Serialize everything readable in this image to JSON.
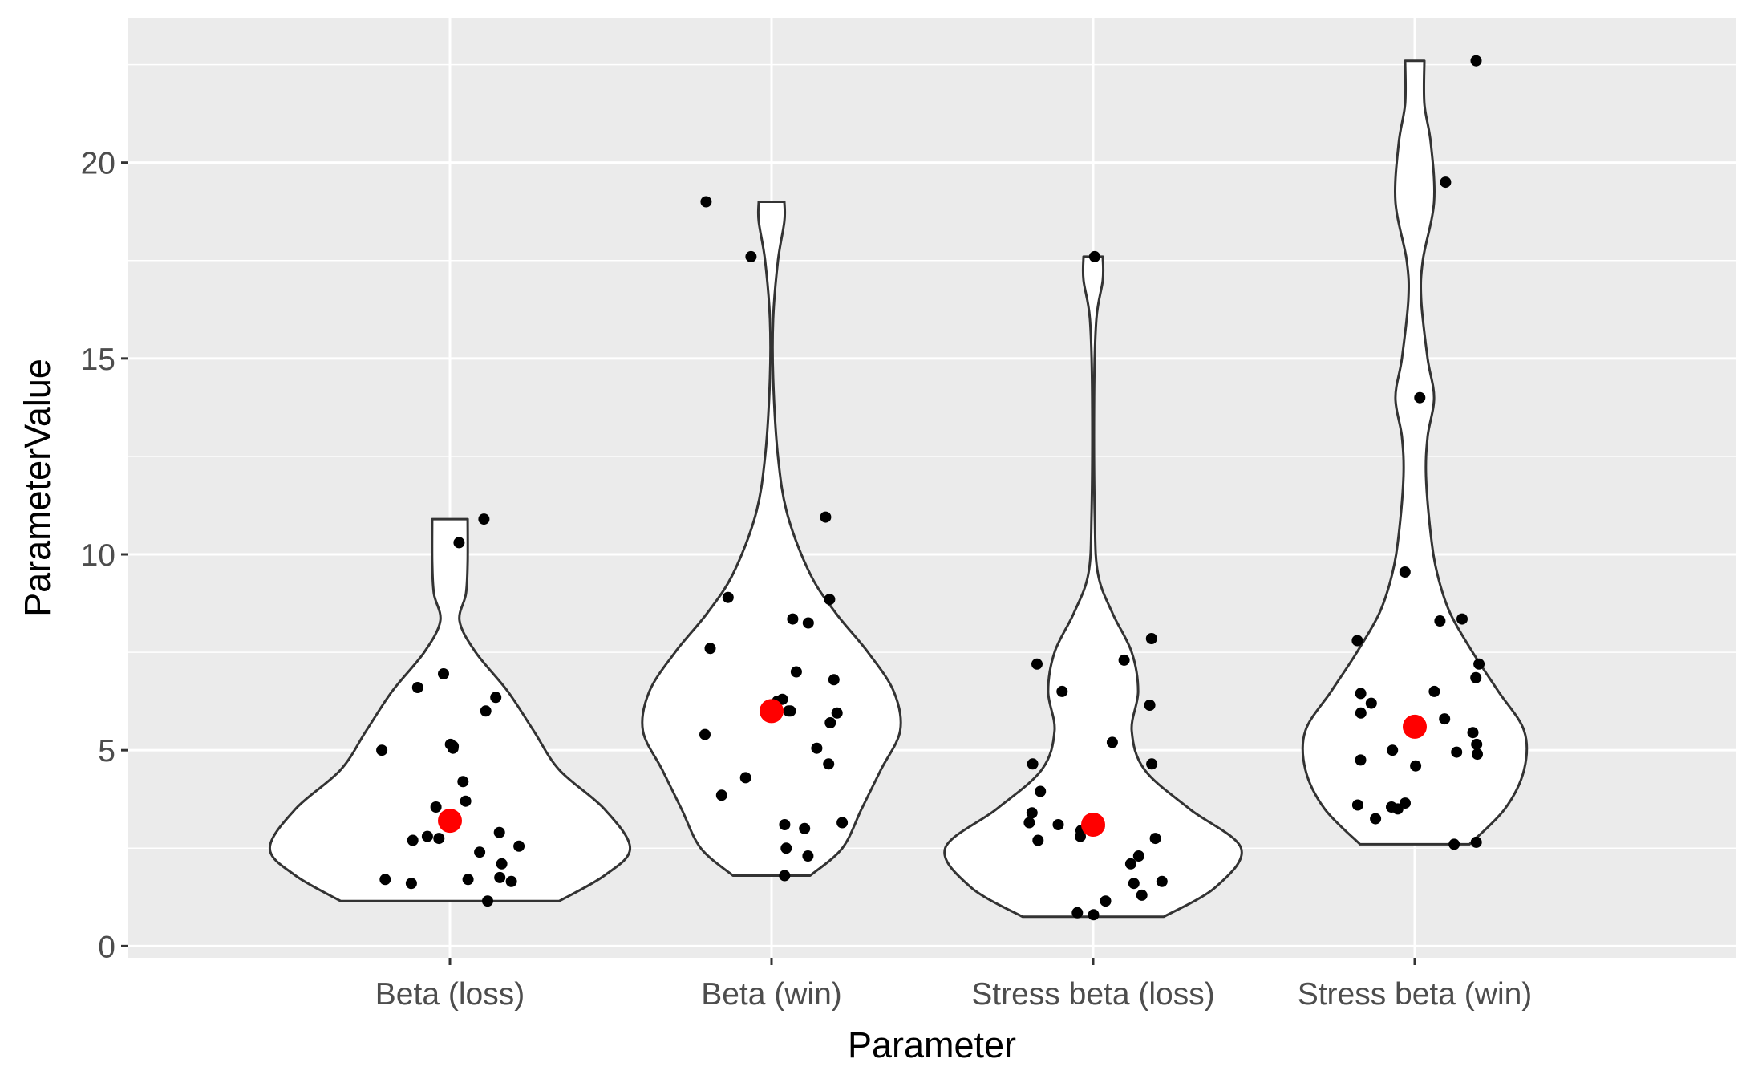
{
  "chart_data": {
    "type": "violin",
    "xlabel": "Parameter",
    "ylabel": "ParameterValue",
    "categories": [
      "Beta (loss)",
      "Beta (win)",
      "Stress beta (loss)",
      "Stress beta (win)"
    ],
    "y_ticks": [
      0,
      5,
      10,
      15,
      20
    ],
    "y_tick_labels": [
      "0",
      "5",
      "10",
      "15",
      "20"
    ],
    "ylim": [
      -0.3,
      23.7
    ],
    "grid": true,
    "legend": "none",
    "colors": {
      "panel_bg": "#ebebeb",
      "grid": "#ffffff",
      "violin_fill": "#ffffff",
      "violin_stroke": "#333333",
      "point": "#000000",
      "mean_point": "#ff0000"
    },
    "series": [
      {
        "category": "Beta (loss)",
        "mean": 3.2,
        "points": [
          10.9,
          10.3,
          6.95,
          6.6,
          6.35,
          6.0,
          5.15,
          5.1,
          5.05,
          5.0,
          4.2,
          3.7,
          3.55,
          2.9,
          2.8,
          2.75,
          2.7,
          2.55,
          2.4,
          2.1,
          1.75,
          1.7,
          1.7,
          1.65,
          1.6,
          1.15
        ],
        "violin": [
          [
            1.15,
            0.34
          ],
          [
            1.8,
            0.48
          ],
          [
            2.5,
            0.56
          ],
          [
            3.5,
            0.48
          ],
          [
            4.5,
            0.34
          ],
          [
            5.5,
            0.26
          ],
          [
            6.5,
            0.18
          ],
          [
            7.5,
            0.08
          ],
          [
            8.3,
            0.03
          ],
          [
            9.0,
            0.05
          ],
          [
            9.8,
            0.055
          ],
          [
            10.9,
            0.055
          ]
        ]
      },
      {
        "category": "Beta (win)",
        "mean": 6.0,
        "points": [
          19.0,
          17.6,
          10.95,
          8.9,
          8.85,
          8.35,
          8.25,
          7.6,
          7.0,
          6.8,
          6.3,
          6.25,
          6.0,
          6.0,
          5.95,
          5.7,
          5.4,
          5.05,
          4.65,
          4.3,
          3.85,
          3.15,
          3.1,
          3.0,
          2.5,
          2.3,
          1.8
        ],
        "violin": [
          [
            1.8,
            0.12
          ],
          [
            2.5,
            0.22
          ],
          [
            3.5,
            0.28
          ],
          [
            4.5,
            0.34
          ],
          [
            5.5,
            0.4
          ],
          [
            6.5,
            0.38
          ],
          [
            7.5,
            0.3
          ],
          [
            8.5,
            0.2
          ],
          [
            9.5,
            0.12
          ],
          [
            11.0,
            0.05
          ],
          [
            12.5,
            0.02
          ],
          [
            14.5,
            0.005
          ],
          [
            16.0,
            0.005
          ],
          [
            17.5,
            0.02
          ],
          [
            18.5,
            0.04
          ],
          [
            19.0,
            0.04
          ]
        ]
      },
      {
        "category": "Stress beta (loss)",
        "mean": 3.1,
        "points": [
          17.6,
          7.85,
          7.3,
          7.2,
          6.5,
          6.15,
          5.2,
          4.65,
          4.65,
          3.95,
          3.4,
          3.15,
          3.1,
          3.05,
          3.05,
          2.95,
          2.8,
          2.75,
          2.7,
          2.3,
          2.1,
          1.65,
          1.6,
          1.3,
          1.15,
          0.85,
          0.8
        ],
        "violin": [
          [
            0.75,
            0.22
          ],
          [
            1.5,
            0.38
          ],
          [
            2.5,
            0.46
          ],
          [
            3.5,
            0.3
          ],
          [
            4.5,
            0.16
          ],
          [
            5.5,
            0.12
          ],
          [
            6.5,
            0.14
          ],
          [
            7.5,
            0.12
          ],
          [
            8.5,
            0.06
          ],
          [
            9.5,
            0.015
          ],
          [
            11.0,
            0.005
          ],
          [
            14.0,
            0.003
          ],
          [
            16.0,
            0.01
          ],
          [
            17.0,
            0.03
          ],
          [
            17.6,
            0.03
          ]
        ]
      },
      {
        "category": "Stress beta (win)",
        "mean": 5.6,
        "points": [
          22.6,
          19.5,
          14.0,
          9.55,
          8.35,
          8.3,
          7.8,
          7.2,
          6.85,
          6.5,
          6.45,
          6.2,
          5.95,
          5.8,
          5.45,
          5.15,
          5.0,
          4.95,
          4.9,
          4.75,
          4.6,
          3.65,
          3.6,
          3.55,
          3.5,
          3.25,
          2.65,
          2.6
        ],
        "violin": [
          [
            2.6,
            0.17
          ],
          [
            3.5,
            0.28
          ],
          [
            4.5,
            0.34
          ],
          [
            5.5,
            0.34
          ],
          [
            6.5,
            0.26
          ],
          [
            7.5,
            0.18
          ],
          [
            8.5,
            0.11
          ],
          [
            9.5,
            0.07
          ],
          [
            10.5,
            0.05
          ],
          [
            12.0,
            0.035
          ],
          [
            13.0,
            0.04
          ],
          [
            14.0,
            0.06
          ],
          [
            15.0,
            0.04
          ],
          [
            16.5,
            0.02
          ],
          [
            17.5,
            0.025
          ],
          [
            19.0,
            0.06
          ],
          [
            20.5,
            0.05
          ],
          [
            21.5,
            0.03
          ],
          [
            22.6,
            0.03
          ]
        ]
      }
    ]
  }
}
